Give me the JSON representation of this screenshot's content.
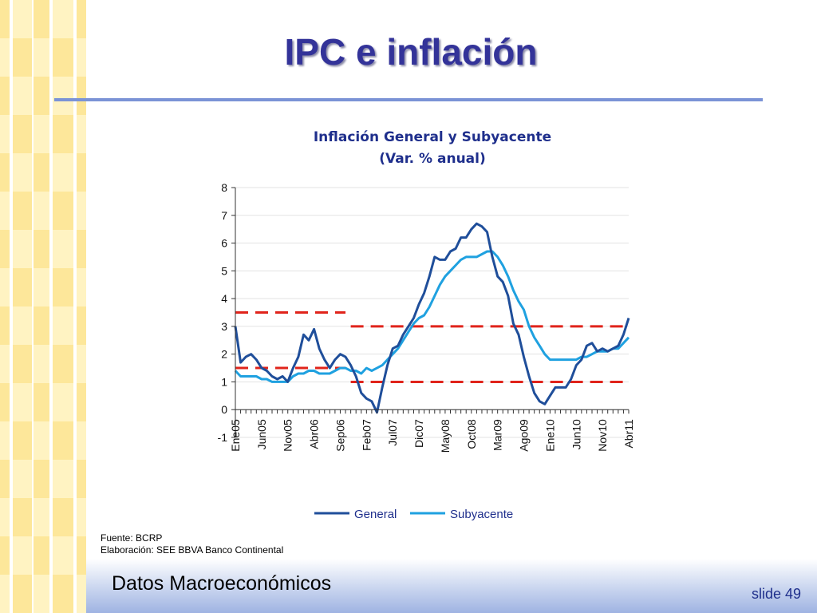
{
  "slide": {
    "title": "IPC e inflación",
    "footer_title": "Datos Macroeconómicos",
    "slide_number": "slide 49",
    "source_lines": [
      "Fuente: BCRP",
      "Elaboración: SEE BBVA Banco Continental"
    ]
  },
  "colors": {
    "title": "#333399",
    "rule": "#7b93d6",
    "stripe_light": "#fff3c2",
    "stripe_dark": "#fde79a",
    "general": "#1f4e9a",
    "subyacente": "#1fa1e0",
    "target": "#e0241b"
  },
  "chart_data": {
    "type": "line",
    "title": [
      "Inflación General y Subyacente",
      "(Var. % anual)"
    ],
    "xlabel": "",
    "ylabel": "",
    "ylim": [
      -1,
      8
    ],
    "yticks": [
      -1,
      0,
      1,
      2,
      3,
      4,
      5,
      6,
      7,
      8
    ],
    "x_tick_labels": [
      "Ene05",
      "Jun05",
      "Nov05",
      "Abr06",
      "Sep06",
      "Feb07",
      "Jul07",
      "Dic07",
      "May08",
      "Oct08",
      "Mar09",
      "Ago09",
      "Ene10",
      "Jun10",
      "Nov10",
      "Abr11"
    ],
    "x_tick_positions": [
      0,
      5,
      10,
      15,
      20,
      25,
      30,
      35,
      40,
      45,
      50,
      55,
      60,
      65,
      70,
      75
    ],
    "legend": "bottom",
    "grid": true,
    "series": [
      {
        "name": "General",
        "values": [
          3.0,
          1.7,
          1.9,
          2.0,
          1.8,
          1.5,
          1.4,
          1.2,
          1.1,
          1.2,
          1.0,
          1.5,
          1.9,
          2.7,
          2.5,
          2.9,
          2.2,
          1.8,
          1.5,
          1.8,
          2.0,
          1.9,
          1.6,
          1.2,
          0.6,
          0.4,
          0.3,
          -0.1,
          0.8,
          1.6,
          2.2,
          2.3,
          2.7,
          3.0,
          3.3,
          3.8,
          4.2,
          4.8,
          5.5,
          5.4,
          5.4,
          5.7,
          5.8,
          6.2,
          6.2,
          6.5,
          6.7,
          6.6,
          6.4,
          5.5,
          4.8,
          4.6,
          4.1,
          3.1,
          2.7,
          1.9,
          1.2,
          0.6,
          0.3,
          0.2,
          0.5,
          0.8,
          0.8,
          0.8,
          1.1,
          1.6,
          1.8,
          2.3,
          2.4,
          2.1,
          2.2,
          2.1,
          2.2,
          2.3,
          2.7,
          3.3
        ]
      },
      {
        "name": "Subyacente",
        "values": [
          1.4,
          1.2,
          1.2,
          1.2,
          1.2,
          1.1,
          1.1,
          1.0,
          1.0,
          1.0,
          1.0,
          1.2,
          1.3,
          1.3,
          1.4,
          1.4,
          1.3,
          1.3,
          1.3,
          1.4,
          1.5,
          1.5,
          1.4,
          1.4,
          1.3,
          1.5,
          1.4,
          1.5,
          1.6,
          1.8,
          2.0,
          2.2,
          2.5,
          2.8,
          3.1,
          3.3,
          3.4,
          3.7,
          4.1,
          4.5,
          4.8,
          5.0,
          5.2,
          5.4,
          5.5,
          5.5,
          5.5,
          5.6,
          5.7,
          5.7,
          5.5,
          5.2,
          4.8,
          4.3,
          3.9,
          3.6,
          3.0,
          2.6,
          2.3,
          2.0,
          1.8,
          1.8,
          1.8,
          1.8,
          1.8,
          1.8,
          1.9,
          1.9,
          2.0,
          2.1,
          2.1,
          2.1,
          2.2,
          2.2,
          2.4,
          2.6
        ]
      }
    ],
    "target_bands": [
      {
        "x": [
          0,
          21
        ],
        "y": 3.5
      },
      {
        "x": [
          0,
          21
        ],
        "y": 1.5
      },
      {
        "x": [
          22,
          75
        ],
        "y": 3.0
      },
      {
        "x": [
          22,
          75
        ],
        "y": 1.0
      }
    ]
  }
}
